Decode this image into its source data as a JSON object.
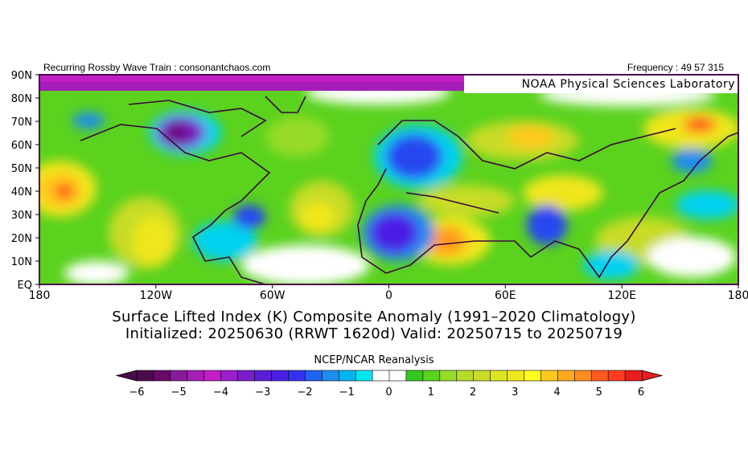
{
  "header": {
    "left": "Recurring Rossby Wave Train : consonantchaos.com",
    "right": "Frequency : 49 57 315",
    "lab": "NOAA Physical Sciences Laboratory"
  },
  "map": {
    "lat_ticks": [
      "90N",
      "80N",
      "70N",
      "60N",
      "50N",
      "40N",
      "30N",
      "20N",
      "10N",
      "EQ"
    ],
    "lon_ticks": [
      "180",
      "120W",
      "60W",
      "0",
      "60E",
      "120E",
      "180"
    ],
    "colors": {
      "frame": "#4b0a4b",
      "coast": "#3a0a3a",
      "anom": [
        "#6a0a6a",
        "#8b1a9b",
        "#a51eb8",
        "#c21ec8",
        "#7a1ec8",
        "#4b1ee6",
        "#2846f0",
        "#1e8cf0",
        "#00d2f0",
        "#ffffff",
        "#5ad21e",
        "#96dc28",
        "#c8dc28",
        "#f0e61e",
        "#ffc81e",
        "#ff9b1e",
        "#ff5a1e",
        "#e61e1e"
      ]
    }
  },
  "title": {
    "line1": "Surface Lifted Index (K) Composite Anomaly (1991–2020 Climatology)",
    "line2": "Initialized: 20250630 (RRWT 1620d) Valid: 20250715 to 20250719"
  },
  "colorbar": {
    "label": "NCEP/NCAR Reanalysis",
    "ticks": [
      "−6",
      "−5",
      "−4",
      "−3",
      "−2",
      "−1",
      "0",
      "1",
      "2",
      "3",
      "4",
      "5",
      "6"
    ],
    "colors": [
      "#4b0a4b",
      "#6a0a6a",
      "#8b1a9b",
      "#a51eb8",
      "#c21ec8",
      "#9b1ecc",
      "#7a1ec8",
      "#5a1ed8",
      "#4b1ee6",
      "#3232f0",
      "#1e64f0",
      "#1e8cf0",
      "#00b4f0",
      "#00e6f0",
      "#ffffff",
      "#ffffff",
      "#32c81e",
      "#5ad21e",
      "#96dc28",
      "#b4dc28",
      "#c8dc28",
      "#dce61e",
      "#f0e61e",
      "#ffff1e",
      "#ffc81e",
      "#ffaa1e",
      "#ff8c1e",
      "#ff5a1e",
      "#ff3c1e",
      "#e61e1e"
    ]
  }
}
